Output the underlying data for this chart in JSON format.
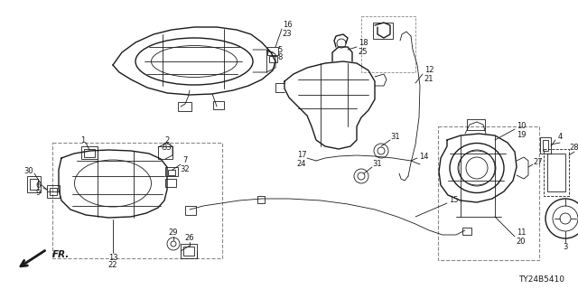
{
  "bg_color": "#ffffff",
  "diagram_code": "TY24B5410",
  "line_color": "#1a1a1a",
  "gray_color": "#888888",
  "label_fontsize": 6.0,
  "diagram_code_fontsize": 6.5
}
